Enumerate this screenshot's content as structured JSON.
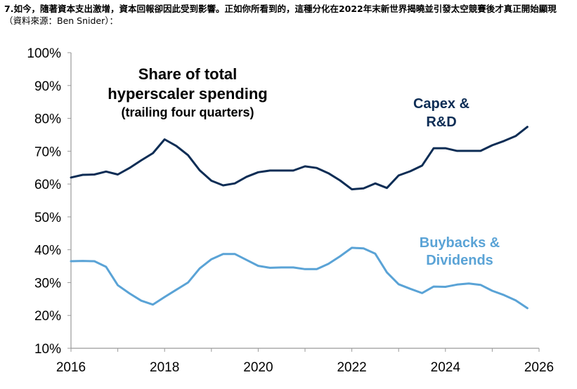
{
  "caption": {
    "main": "7.如今，隨著資本支出激增，資本回報卻因此受到影響。正如你所看到的，這種分化在2022年末新世界揭曉並引發太空競賽後才真正開始顯現",
    "source": "（資料來源：Ben Snider）："
  },
  "colors": {
    "capex": "#0d2d55",
    "buybacks": "#5aa3d6",
    "axis": "#9a9a9a"
  },
  "chart_data": {
    "type": "line",
    "title": [
      "Share of total",
      "hyperscaler spending",
      "(trailing four quarters)"
    ],
    "xlabel": "",
    "ylabel": "",
    "xlim": [
      2016,
      2026
    ],
    "ylim": [
      10,
      100
    ],
    "x_ticks": [
      "2016",
      "2018",
      "2020",
      "2022",
      "2024",
      "2026"
    ],
    "y_ticks": [
      "10%",
      "20%",
      "30%",
      "40%",
      "50%",
      "60%",
      "70%",
      "80%",
      "90%",
      "100%"
    ],
    "grid": false,
    "series": [
      {
        "name": "Capex & R&D",
        "label_lines": [
          "Capex &",
          "R&D"
        ],
        "x": [
          2016.0,
          2016.25,
          2016.5,
          2016.75,
          2017.0,
          2017.25,
          2017.5,
          2017.75,
          2018.0,
          2018.25,
          2018.5,
          2018.75,
          2019.0,
          2019.25,
          2019.5,
          2019.75,
          2020.0,
          2020.25,
          2020.5,
          2020.75,
          2021.0,
          2021.25,
          2021.5,
          2021.75,
          2022.0,
          2022.25,
          2022.5,
          2022.75,
          2023.0,
          2023.25,
          2023.5,
          2023.75,
          2024.0,
          2024.25,
          2024.5,
          2024.75,
          2025.0,
          2025.25,
          2025.5,
          2025.75
        ],
        "values": [
          62.0,
          62.8,
          62.9,
          63.8,
          62.9,
          64.9,
          67.2,
          69.4,
          73.6,
          71.6,
          68.8,
          64.2,
          61.0,
          59.6,
          60.2,
          62.2,
          63.6,
          64.1,
          64.1,
          64.1,
          65.4,
          64.9,
          63.3,
          61.1,
          58.4,
          58.7,
          60.2,
          58.8,
          62.6,
          63.9,
          65.6,
          70.9,
          70.9,
          70.1,
          70.1,
          70.1,
          71.8,
          73.1,
          74.6,
          77.4
        ]
      },
      {
        "name": "Buybacks & Dividends",
        "label_lines": [
          "Buybacks &",
          "Dividends"
        ],
        "x": [
          2016.0,
          2016.25,
          2016.5,
          2016.75,
          2017.0,
          2017.25,
          2017.5,
          2017.75,
          2018.0,
          2018.25,
          2018.5,
          2018.75,
          2019.0,
          2019.25,
          2019.5,
          2019.75,
          2020.0,
          2020.25,
          2020.5,
          2020.75,
          2021.0,
          2021.25,
          2021.5,
          2021.75,
          2022.0,
          2022.25,
          2022.5,
          2022.75,
          2023.0,
          2023.25,
          2023.5,
          2023.75,
          2024.0,
          2024.25,
          2024.5,
          2024.75,
          2025.0,
          2025.25,
          2025.5,
          2025.75
        ],
        "values": [
          36.5,
          36.6,
          36.5,
          34.8,
          29.2,
          26.7,
          24.5,
          23.3,
          25.6,
          27.8,
          30.0,
          34.3,
          37.1,
          38.7,
          38.7,
          36.9,
          35.1,
          34.5,
          34.6,
          34.6,
          34.1,
          34.1,
          35.7,
          38.0,
          40.6,
          40.4,
          38.8,
          33.1,
          29.5,
          28.1,
          26.8,
          28.8,
          28.7,
          29.4,
          29.7,
          29.3,
          27.5,
          26.2,
          24.6,
          22.2
        ]
      }
    ]
  }
}
